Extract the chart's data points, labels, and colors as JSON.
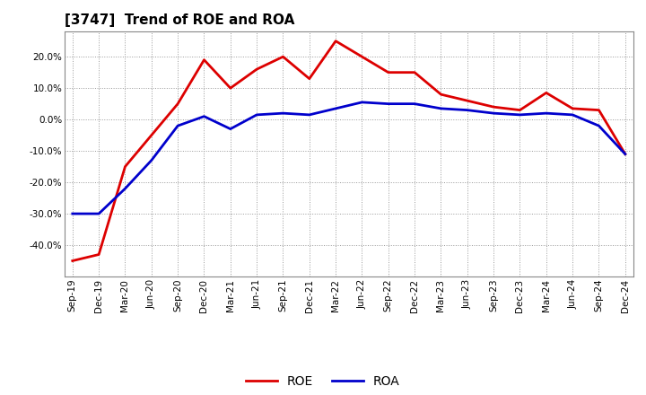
{
  "title": "[3747]  Trend of ROE and ROA",
  "labels": [
    "Sep-19",
    "Dec-19",
    "Mar-20",
    "Jun-20",
    "Sep-20",
    "Dec-20",
    "Mar-21",
    "Jun-21",
    "Sep-21",
    "Dec-21",
    "Mar-22",
    "Jun-22",
    "Sep-22",
    "Dec-22",
    "Mar-23",
    "Jun-23",
    "Sep-23",
    "Dec-23",
    "Mar-24",
    "Jun-24",
    "Sep-24",
    "Dec-24"
  ],
  "ROE": [
    -45.0,
    -43.0,
    -15.0,
    -5.0,
    5.0,
    19.0,
    10.0,
    16.0,
    20.0,
    13.0,
    25.0,
    20.0,
    15.0,
    15.0,
    8.0,
    6.0,
    4.0,
    3.0,
    8.5,
    3.5,
    3.0,
    -11.0
  ],
  "ROA": [
    -30.0,
    -30.0,
    -22.0,
    -13.0,
    -2.0,
    1.0,
    -3.0,
    1.5,
    2.0,
    1.5,
    3.5,
    5.5,
    5.0,
    5.0,
    3.5,
    3.0,
    2.0,
    1.5,
    2.0,
    1.5,
    -2.0,
    -11.0
  ],
  "roe_color": "#dd0000",
  "roa_color": "#0000cc",
  "bg_color": "#ffffff",
  "plot_bg_color": "#ffffff",
  "grid_color": "#999999",
  "ylim": [
    -50,
    28
  ],
  "yticks": [
    -40,
    -30,
    -20,
    -10,
    0,
    10,
    20
  ],
  "title_fontsize": 11,
  "legend_fontsize": 10,
  "tick_fontsize": 7.5,
  "line_width": 2.0
}
